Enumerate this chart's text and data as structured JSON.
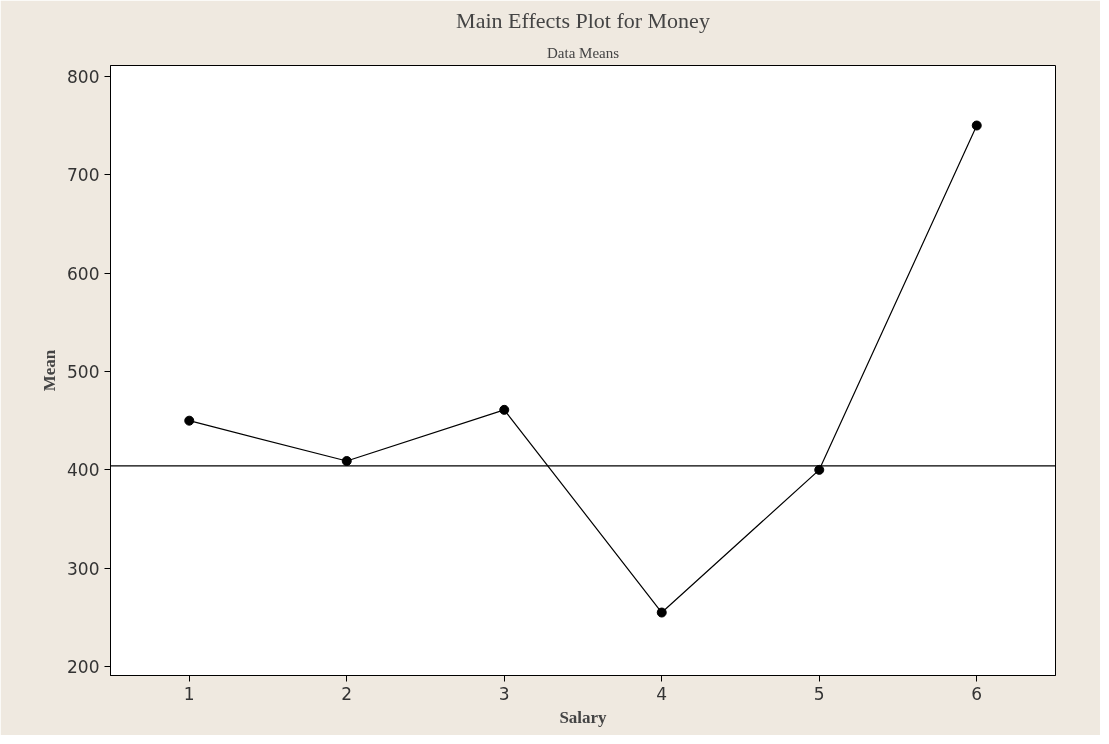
{
  "chart_data": {
    "type": "line",
    "title": "Main Effects Plot for Money",
    "subtitle": "Data Means",
    "xlabel": "Salary",
    "ylabel": "Mean",
    "x": [
      1,
      2,
      3,
      4,
      5,
      6
    ],
    "series": [
      {
        "color": "#000000",
        "values": [
          450,
          409,
          461,
          255,
          400,
          750
        ]
      }
    ],
    "xlim": [
      0.5,
      6.5
    ],
    "xticks": [
      1,
      2,
      3,
      4,
      5,
      6
    ],
    "ylim": [
      191,
      811
    ],
    "yticks": [
      200,
      300,
      400,
      500,
      600,
      700,
      800
    ],
    "ref_lines": [
      {
        "axis": "y",
        "value": 404,
        "color": "#000000"
      }
    ],
    "marker": "circle",
    "line_style": "solid",
    "grid": false
  }
}
